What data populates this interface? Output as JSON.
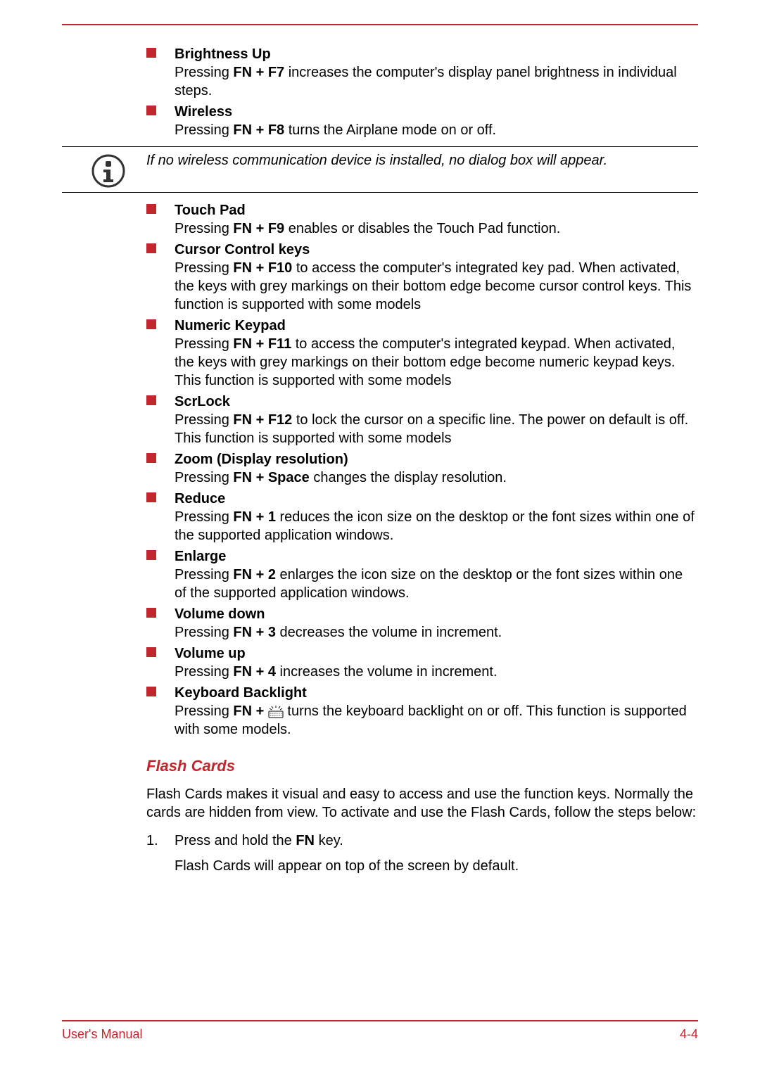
{
  "colors": {
    "accent": "#c1272d",
    "text": "#000000",
    "background": "#ffffff"
  },
  "bullets_top": [
    {
      "title": "Brightness Up",
      "pre": "Pressing ",
      "key": "FN + F7",
      "post": " increases the computer's display panel brightness in individual steps."
    },
    {
      "title": "Wireless",
      "pre": "Pressing ",
      "key": "FN + F8",
      "post": " turns the Airplane mode on or off."
    }
  ],
  "note": "If no wireless communication device is installed, no dialog box will appear.",
  "bullets_main": [
    {
      "title": "Touch Pad",
      "pre": "Pressing ",
      "key": "FN + F9",
      "post": " enables or disables the Touch Pad function."
    },
    {
      "title": "Cursor Control keys",
      "pre": "Pressing ",
      "key": "FN + F10",
      "post": " to access the computer's integrated key pad. When activated, the keys with grey markings on their bottom edge become cursor control keys. This function is supported with some models"
    },
    {
      "title": "Numeric Keypad",
      "pre": "Pressing ",
      "key": "FN + F11",
      "post": " to access the computer's integrated keypad. When activated, the keys with grey markings on their bottom edge become numeric keypad keys. This function is supported with some models"
    },
    {
      "title": "ScrLock",
      "pre": "Pressing ",
      "key": "FN + F12",
      "post": " to lock the cursor on a specific line. The power on default is off. This function is supported with some models"
    },
    {
      "title": "Zoom (Display resolution)",
      "pre": "Pressing ",
      "key": "FN + Space",
      "post": " changes the display resolution."
    },
    {
      "title": "Reduce",
      "pre": "Pressing ",
      "key": "FN + 1",
      "post": " reduces the icon size on the desktop or the font sizes within one of the supported application windows."
    },
    {
      "title": "Enlarge",
      "pre": "Pressing ",
      "key": "FN + 2",
      "post": " enlarges the icon size on the desktop or the font sizes within one of the supported application windows."
    },
    {
      "title": "Volume down",
      "pre": "Pressing ",
      "key": "FN + 3",
      "post": " decreases the volume in increment."
    },
    {
      "title": "Volume up",
      "pre": "Pressing ",
      "key": "FN + 4",
      "post": " increases the volume in increment."
    }
  ],
  "backlight": {
    "title": "Keyboard Backlight",
    "pre": "Pressing ",
    "key": "FN + ",
    "post": " turns the keyboard backlight on or off. This function is supported with some models."
  },
  "section_heading": "Flash Cards",
  "flash_intro": "Flash Cards makes it visual and easy to access and use the function keys. Normally the cards are hidden from view. To activate and use the Flash Cards, follow the steps below:",
  "step1_num": "1.",
  "step1_pre": "Press and hold the ",
  "step1_key": "FN",
  "step1_post": " key.",
  "step1_result": "Flash Cards will appear on top of the screen by default.",
  "footer_left": "User's Manual",
  "footer_right": "4-4"
}
